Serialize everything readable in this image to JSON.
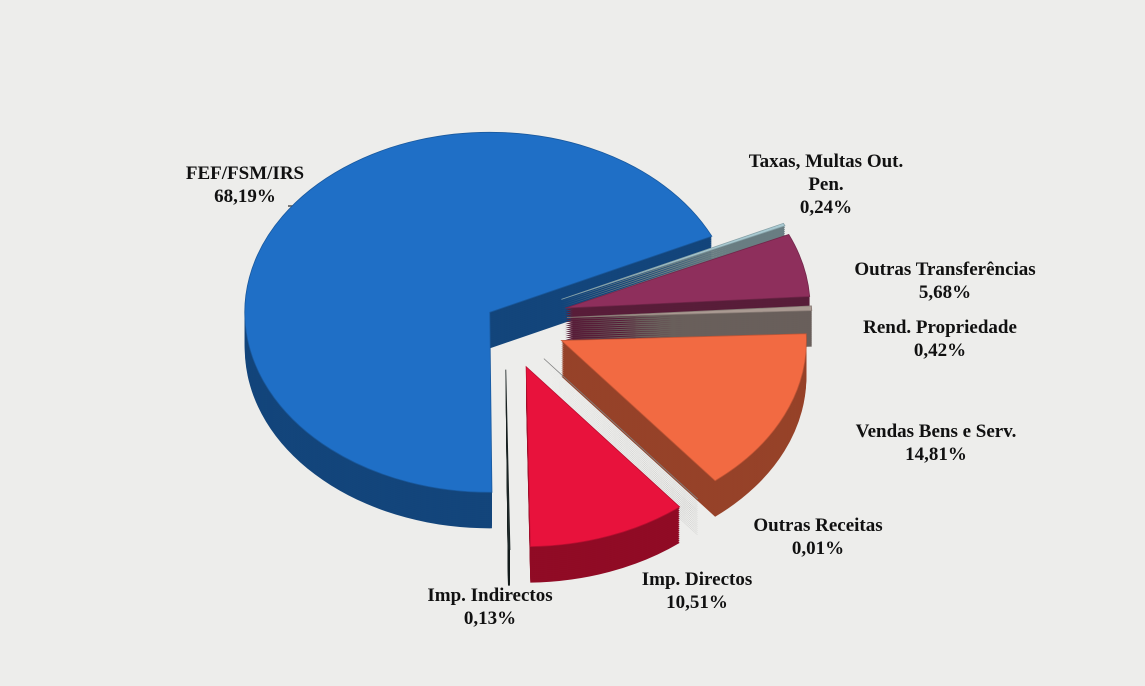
{
  "chart_data": {
    "type": "pie",
    "categories": [
      "FEF/FSM/IRS",
      "Taxas, Multas Out. Pen.",
      "Outras Transferências",
      "Rend. Propriedade",
      "Vendas Bens e Serv.",
      "Outras Receitas",
      "Imp. Directos",
      "Imp. Indirectos"
    ],
    "values": [
      68.19,
      0.24,
      5.68,
      0.42,
      14.81,
      0.01,
      10.51,
      0.13
    ],
    "value_labels": [
      "68,19%",
      "0,24%",
      "5,68%",
      "0,42%",
      "14,81%",
      "0,01%",
      "10,51%",
      "0,13%"
    ],
    "colors": [
      "#1f6fc6",
      "#a9cad2",
      "#8e2f5c",
      "#aa9a92",
      "#f26a42",
      "#a2a2a2",
      "#e8123c",
      "#1f2b2b"
    ]
  }
}
